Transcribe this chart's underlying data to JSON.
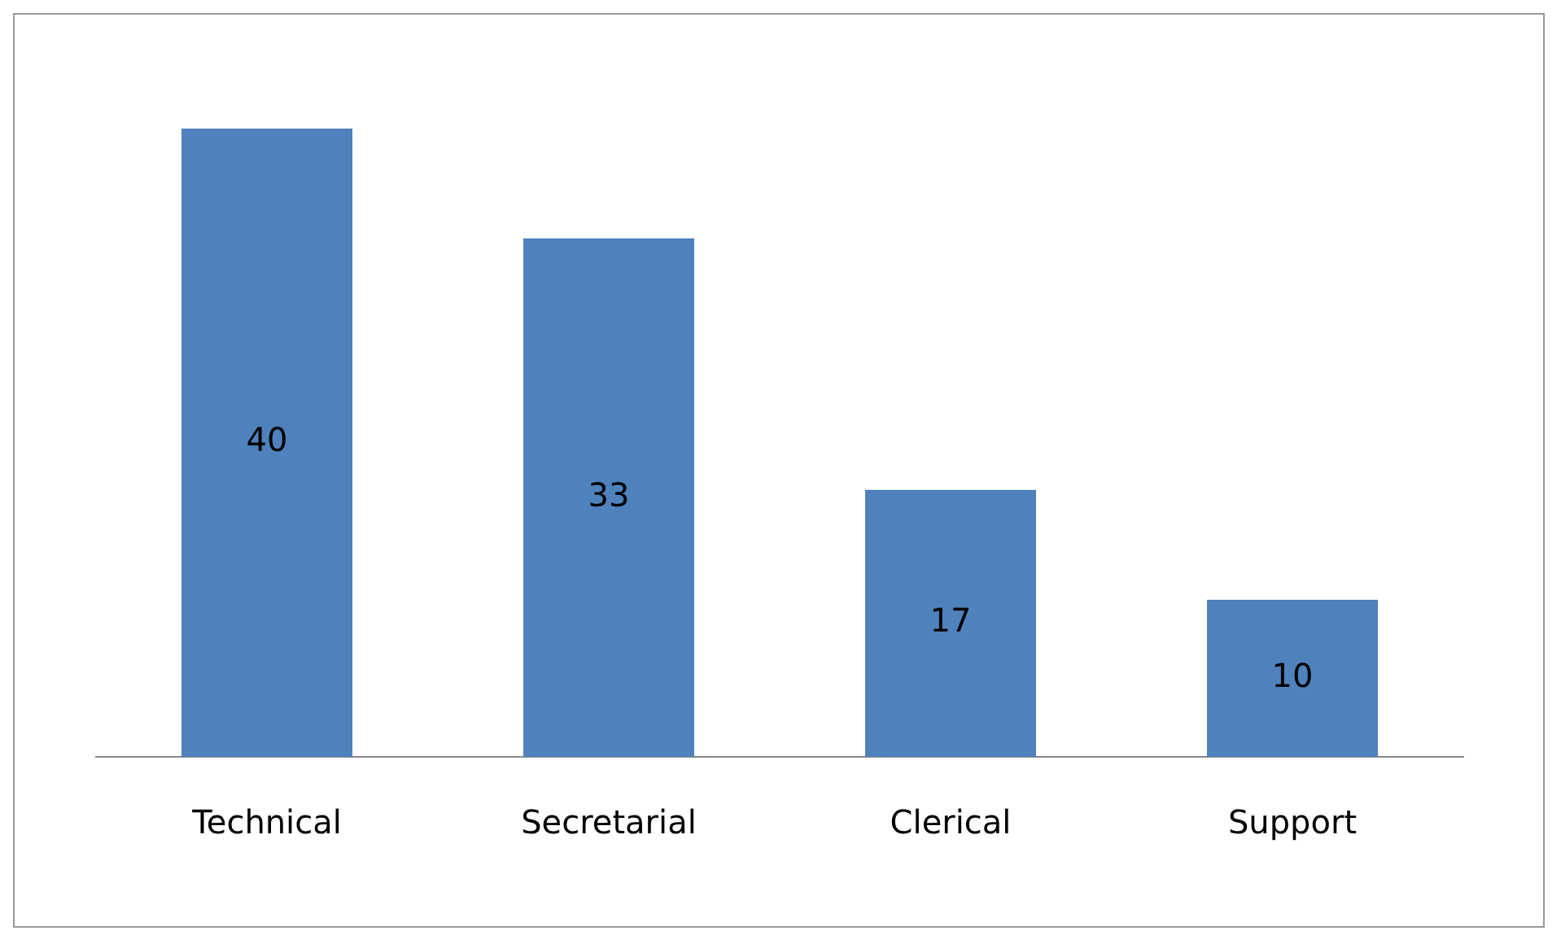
{
  "chart_data": {
    "type": "bar",
    "categories": [
      "Technical",
      "Secretarial",
      "Clerical",
      "Support"
    ],
    "values": [
      40,
      33,
      17,
      10
    ],
    "color": "#4f81bd",
    "data_labels": true,
    "grid": false,
    "legend": false
  }
}
